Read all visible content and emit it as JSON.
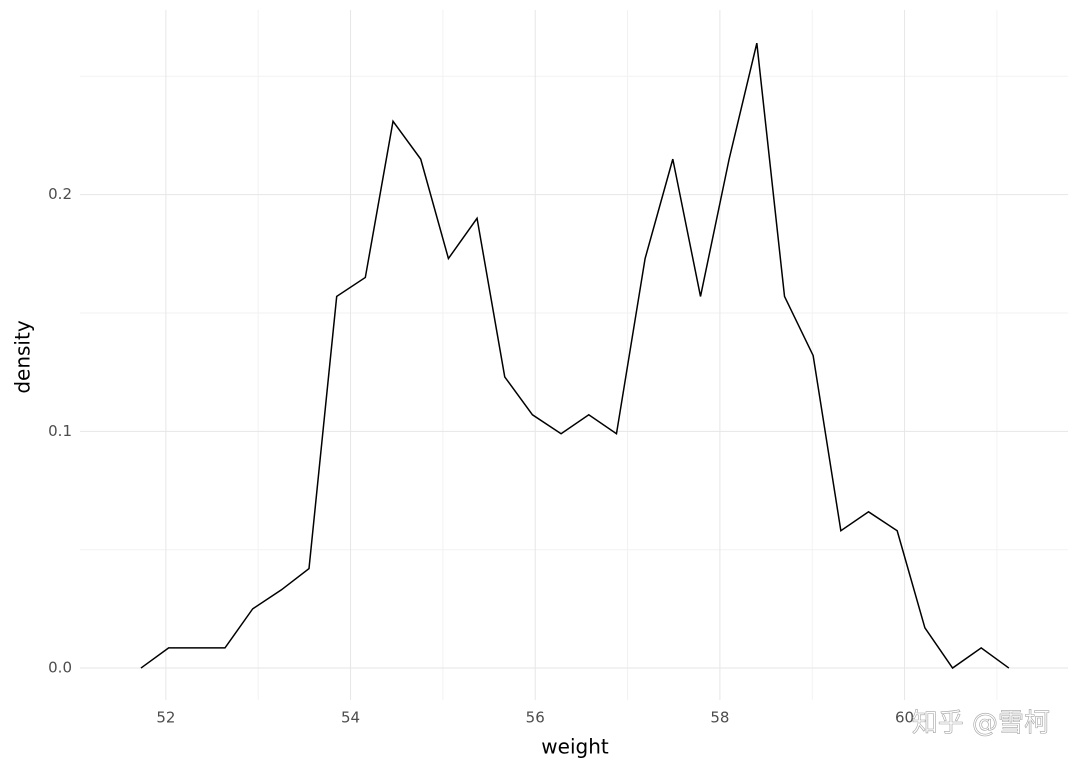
{
  "chart_data": {
    "type": "line",
    "x_label": "weight",
    "y_label": "density",
    "x": [
      51.73,
      52.03,
      52.34,
      52.64,
      52.94,
      53.25,
      53.55,
      53.85,
      54.16,
      54.46,
      54.76,
      55.06,
      55.37,
      55.67,
      55.97,
      56.28,
      56.58,
      56.88,
      57.19,
      57.49,
      57.79,
      58.1,
      58.4,
      58.7,
      59.01,
      59.31,
      59.61,
      59.92,
      60.22,
      60.52,
      60.83,
      61.13
    ],
    "series": [
      {
        "color": "#000000",
        "values": [
          0,
          0.0085,
          0.0085,
          0.0085,
          0.025,
          0.033,
          0.042,
          0.157,
          0.165,
          0.231,
          0.215,
          0.173,
          0.19,
          0.123,
          0.107,
          0.099,
          0.107,
          0.099,
          0.173,
          0.215,
          0.157,
          0.215,
          0.264,
          0.157,
          0.132,
          0.058,
          0.066,
          0.058,
          0.017,
          0,
          0.0085,
          0
        ]
      }
    ],
    "xlim": [
      51.07,
      61.77
    ],
    "ylim": [
      -0.0135,
      0.278
    ],
    "xticks": [
      52,
      54,
      56,
      58,
      60
    ],
    "yticks": [
      {
        "value": 0,
        "label": "0.0"
      },
      0.1,
      0.2
    ],
    "grid": true,
    "watermark": "知乎 @雪柯"
  }
}
